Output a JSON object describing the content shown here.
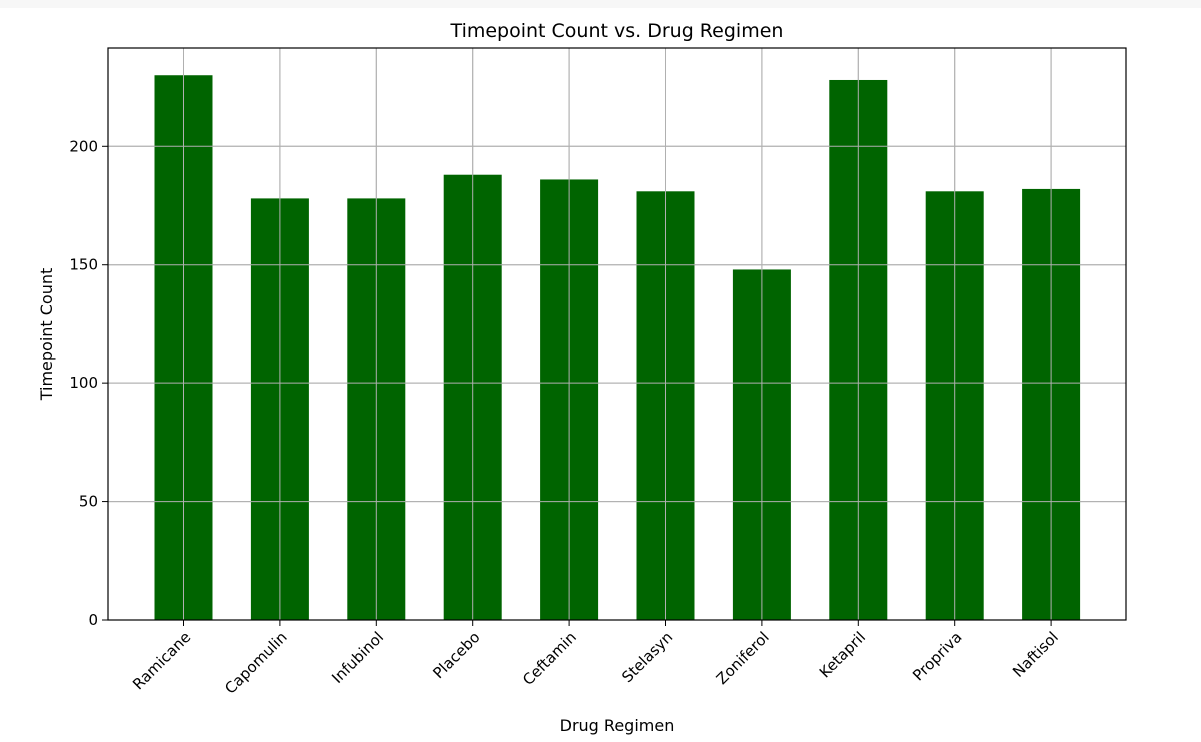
{
  "chart_data": {
    "type": "bar",
    "title": "Timepoint Count vs. Drug Regimen",
    "xlabel": "Drug Regimen",
    "ylabel": "Timepoint Count",
    "categories": [
      "Ramicane",
      "Capomulin",
      "Infubinol",
      "Placebo",
      "Ceftamin",
      "Stelasyn",
      "Zoniferol",
      "Ketapril",
      "Propriva",
      "Naftisol"
    ],
    "values": [
      230,
      178,
      178,
      188,
      186,
      181,
      148,
      228,
      181,
      182
    ],
    "ylim": [
      0,
      241.5
    ],
    "yticks": [
      0,
      50,
      100,
      150,
      200
    ],
    "grid": true,
    "bar_color": "#006400",
    "grid_color": "#b0b0b0",
    "tick_rotation_deg": -45
  }
}
